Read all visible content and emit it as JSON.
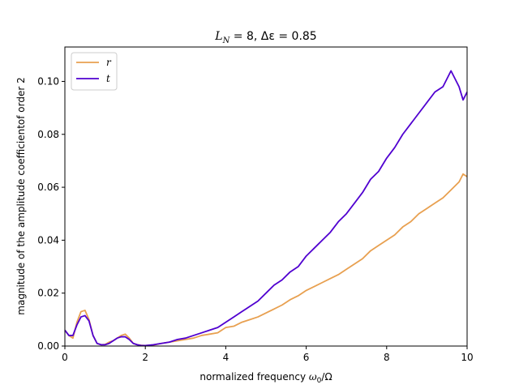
{
  "chart_data": {
    "type": "line",
    "title": "L_N = 8, Δε = 0.85",
    "title_parts": {
      "a": "L",
      "a_sub": "N",
      "b": " = 8, Δε = 0.85"
    },
    "xlabel": "normalized frequency ω₀/Ω",
    "xlabel_parts": {
      "text": "normalized frequency ",
      "sym": "ω",
      "sub": "0",
      "rest": "/Ω"
    },
    "ylabel": "magnitude of the amplitude coefficientof order 2",
    "xlim": [
      0,
      10
    ],
    "ylim": [
      0,
      0.113
    ],
    "x_ticks": [
      0,
      2,
      4,
      6,
      8,
      10
    ],
    "x_tick_labels": [
      "0",
      "2",
      "4",
      "6",
      "8",
      "10"
    ],
    "y_ticks": [
      0,
      0.02,
      0.04,
      0.06,
      0.08,
      0.1
    ],
    "y_tick_labels": [
      "0.00",
      "0.02",
      "0.04",
      "0.06",
      "0.08",
      "0.10"
    ],
    "legend_position": "top-left",
    "grid": false,
    "series": [
      {
        "name": "r",
        "color": "#e8a050",
        "x": [
          0,
          0.1,
          0.2,
          0.3,
          0.4,
          0.5,
          0.6,
          0.7,
          0.8,
          0.9,
          1.0,
          1.1,
          1.2,
          1.3,
          1.4,
          1.5,
          1.6,
          1.7,
          1.8,
          1.9,
          2.0,
          2.2,
          2.4,
          2.6,
          2.8,
          3.0,
          3.2,
          3.4,
          3.6,
          3.8,
          4.0,
          4.2,
          4.4,
          4.6,
          4.8,
          5.0,
          5.2,
          5.4,
          5.6,
          5.8,
          6.0,
          6.2,
          6.4,
          6.6,
          6.8,
          7.0,
          7.2,
          7.4,
          7.6,
          7.8,
          8.0,
          8.2,
          8.4,
          8.6,
          8.8,
          9.0,
          9.2,
          9.4,
          9.6,
          9.8,
          9.9,
          10.0
        ],
        "values": [
          0.006,
          0.004,
          0.003,
          0.009,
          0.013,
          0.0135,
          0.01,
          0.004,
          0.001,
          0.0005,
          0.0006,
          0.0015,
          0.002,
          0.003,
          0.004,
          0.0045,
          0.003,
          0.001,
          0.0005,
          0.0003,
          0.0002,
          0.0004,
          0.001,
          0.0015,
          0.002,
          0.0025,
          0.003,
          0.004,
          0.0045,
          0.005,
          0.007,
          0.0075,
          0.009,
          0.01,
          0.011,
          0.0125,
          0.014,
          0.0155,
          0.0175,
          0.019,
          0.021,
          0.0225,
          0.024,
          0.0255,
          0.027,
          0.029,
          0.031,
          0.033,
          0.036,
          0.038,
          0.04,
          0.042,
          0.045,
          0.047,
          0.05,
          0.052,
          0.054,
          0.056,
          0.059,
          0.062,
          0.065,
          0.064
        ]
      },
      {
        "name": "t",
        "color": "#5000d0",
        "x": [
          0,
          0.1,
          0.2,
          0.3,
          0.4,
          0.5,
          0.6,
          0.7,
          0.8,
          0.9,
          1.0,
          1.1,
          1.2,
          1.3,
          1.4,
          1.5,
          1.6,
          1.7,
          1.8,
          1.9,
          2.0,
          2.2,
          2.4,
          2.6,
          2.8,
          3.0,
          3.2,
          3.4,
          3.6,
          3.8,
          4.0,
          4.2,
          4.4,
          4.6,
          4.8,
          5.0,
          5.2,
          5.4,
          5.6,
          5.8,
          6.0,
          6.2,
          6.4,
          6.6,
          6.8,
          7.0,
          7.2,
          7.4,
          7.6,
          7.8,
          8.0,
          8.2,
          8.4,
          8.6,
          8.8,
          9.0,
          9.2,
          9.4,
          9.6,
          9.8,
          9.9,
          10.0
        ],
        "values": [
          0.006,
          0.004,
          0.004,
          0.008,
          0.011,
          0.0115,
          0.0095,
          0.004,
          0.001,
          0.0005,
          0.0005,
          0.001,
          0.002,
          0.003,
          0.0035,
          0.0035,
          0.0025,
          0.001,
          0.0005,
          0.0002,
          0.0002,
          0.0005,
          0.001,
          0.0015,
          0.0025,
          0.003,
          0.004,
          0.005,
          0.006,
          0.007,
          0.009,
          0.011,
          0.013,
          0.015,
          0.017,
          0.02,
          0.023,
          0.025,
          0.028,
          0.03,
          0.034,
          0.037,
          0.04,
          0.043,
          0.047,
          0.05,
          0.054,
          0.058,
          0.063,
          0.066,
          0.071,
          0.075,
          0.08,
          0.084,
          0.088,
          0.092,
          0.096,
          0.098,
          0.104,
          0.098,
          0.093,
          0.096
        ]
      }
    ]
  }
}
